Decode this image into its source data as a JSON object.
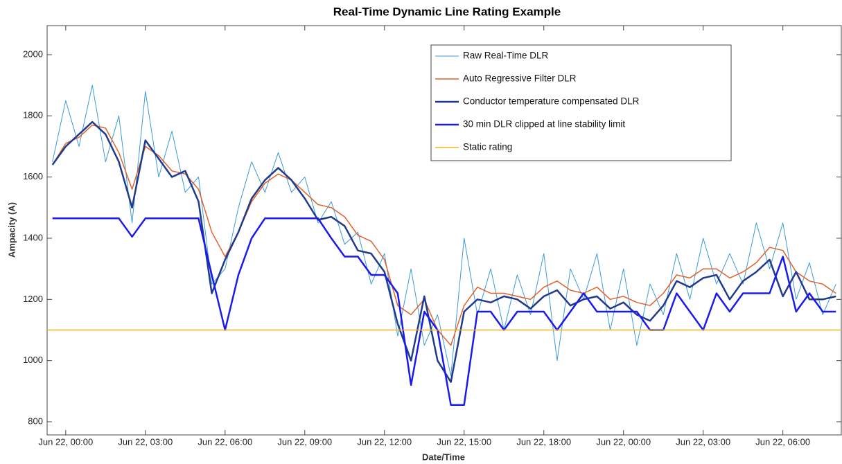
{
  "chart_data": {
    "type": "line",
    "title": "Real-Time Dynamic Line Rating Example",
    "xlabel": "Date/Time",
    "ylabel": "Ampacity (A)",
    "xlim": [
      -0.7,
      29.2
    ],
    "ylim": [
      757,
      2095
    ],
    "yticks": [
      800,
      1000,
      1200,
      1400,
      1600,
      1800,
      2000
    ],
    "xticks": [
      {
        "value": 0,
        "label": "Jun 22, 00:00"
      },
      {
        "value": 3,
        "label": "Jun 22, 03:00"
      },
      {
        "value": 6,
        "label": "Jun 22, 06:00"
      },
      {
        "value": 9,
        "label": "Jun 22, 09:00"
      },
      {
        "value": 12,
        "label": "Jun 22, 12:00"
      },
      {
        "value": 15,
        "label": "Jun 22, 15:00"
      },
      {
        "value": 18,
        "label": "Jun 22, 18:00"
      },
      {
        "value": 21,
        "label": "Jun 22, 00:00"
      },
      {
        "value": 24,
        "label": "Jun 22, 03:00"
      },
      {
        "value": 27,
        "label": "Jun 22, 06:00"
      }
    ],
    "legend": "upper right",
    "x": [
      -0.5,
      0,
      0.5,
      1,
      1.5,
      2,
      2.5,
      3,
      3.5,
      4,
      4.5,
      5,
      5.5,
      6,
      6.5,
      7,
      7.5,
      8,
      8.5,
      9,
      9.5,
      10,
      10.5,
      11,
      11.5,
      12,
      12.5,
      13,
      13.5,
      14,
      14.5,
      15,
      15.5,
      16,
      16.5,
      17,
      17.5,
      18,
      18.5,
      19,
      19.5,
      20,
      20.5,
      21,
      21.5,
      22,
      22.5,
      23,
      23.5,
      24,
      24.5,
      25,
      25.5,
      26,
      26.5,
      27,
      27.5,
      28,
      28.5,
      29
    ],
    "series": [
      {
        "name": "Raw Real-Time DLR",
        "color": "#3a9ad6",
        "width": 1,
        "values": [
          1650,
          1850,
          1700,
          1900,
          1650,
          1800,
          1450,
          1880,
          1600,
          1750,
          1550,
          1600,
          1250,
          1300,
          1500,
          1650,
          1550,
          1680,
          1550,
          1600,
          1450,
          1520,
          1380,
          1420,
          1250,
          1350,
          1080,
          1300,
          1050,
          1150,
          950,
          1400,
          1150,
          1300,
          1100,
          1280,
          1150,
          1350,
          1000,
          1300,
          1200,
          1350,
          1100,
          1300,
          1050,
          1250,
          1150,
          1350,
          1200,
          1400,
          1250,
          1350,
          1250,
          1450,
          1300,
          1450,
          1200,
          1320,
          1150,
          1250
        ]
      },
      {
        "name": "Auto Regressive Filter DLR",
        "color": "#e0622a",
        "width": 1.5,
        "values": [
          1640,
          1710,
          1730,
          1770,
          1760,
          1680,
          1560,
          1700,
          1670,
          1620,
          1610,
          1560,
          1420,
          1340,
          1420,
          1520,
          1580,
          1610,
          1590,
          1550,
          1510,
          1500,
          1470,
          1410,
          1390,
          1330,
          1180,
          1150,
          1200,
          1100,
          1050,
          1180,
          1240,
          1220,
          1220,
          1210,
          1200,
          1240,
          1260,
          1230,
          1220,
          1240,
          1200,
          1210,
          1190,
          1180,
          1220,
          1280,
          1270,
          1300,
          1300,
          1270,
          1290,
          1320,
          1370,
          1360,
          1290,
          1260,
          1250,
          1220
        ]
      },
      {
        "name": "Conductor temperature compensated DLR",
        "color": "#1f3a8c",
        "width": 2.5,
        "values": [
          1640,
          1700,
          1740,
          1780,
          1740,
          1650,
          1500,
          1720,
          1660,
          1600,
          1620,
          1520,
          1220,
          1330,
          1420,
          1530,
          1590,
          1630,
          1590,
          1530,
          1460,
          1470,
          1440,
          1360,
          1350,
          1290,
          1120,
          1000,
          1210,
          1000,
          930,
          1160,
          1200,
          1190,
          1210,
          1200,
          1170,
          1210,
          1230,
          1180,
          1200,
          1210,
          1170,
          1190,
          1150,
          1130,
          1180,
          1260,
          1240,
          1270,
          1280,
          1200,
          1260,
          1290,
          1330,
          1210,
          1290,
          1200,
          1200,
          1210
        ]
      },
      {
        "name": "30 min DLR clipped at line stability limit",
        "color": "#1a1af0",
        "width": 2.5,
        "values": [
          1465,
          1465,
          1465,
          1465,
          1465,
          1465,
          1405,
          1465,
          1465,
          1465,
          1465,
          1465,
          1280,
          1100,
          1280,
          1400,
          1465,
          1465,
          1465,
          1465,
          1465,
          1400,
          1340,
          1340,
          1280,
          1280,
          1220,
          920,
          1160,
          1100,
          855,
          855,
          1160,
          1160,
          1100,
          1160,
          1160,
          1160,
          1100,
          1160,
          1220,
          1160,
          1160,
          1160,
          1160,
          1100,
          1100,
          1220,
          1160,
          1100,
          1220,
          1160,
          1220,
          1220,
          1220,
          1340,
          1160,
          1220,
          1160,
          1160
        ]
      },
      {
        "name": "Static rating",
        "color": "#f0b429",
        "width": 1.5,
        "x": [
          -0.7,
          29.2
        ],
        "values": [
          1100,
          1100
        ]
      }
    ]
  }
}
